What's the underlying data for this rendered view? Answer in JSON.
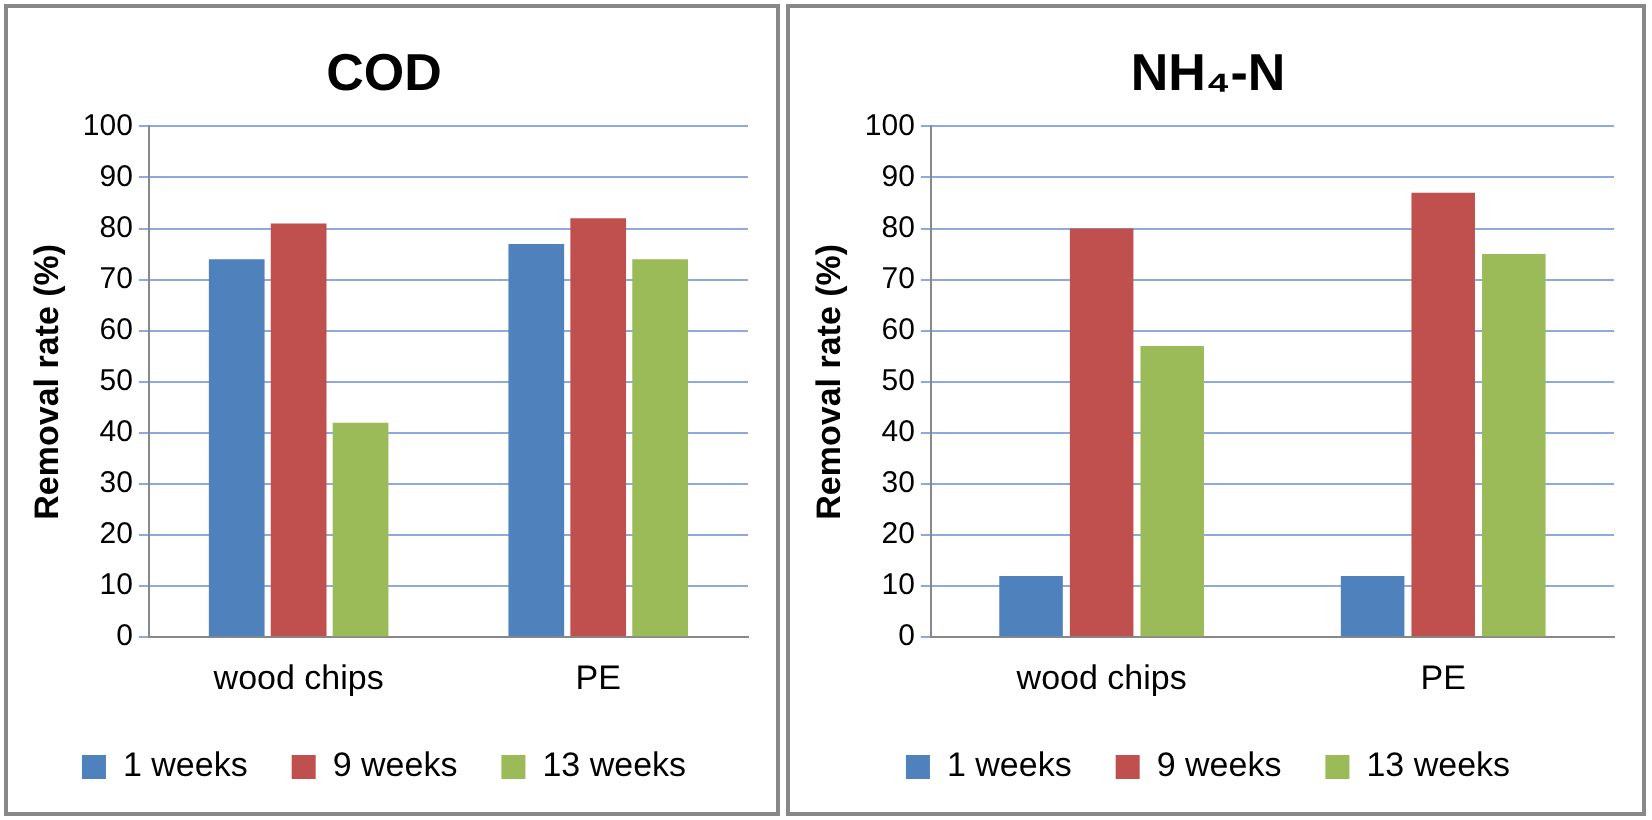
{
  "chart_data": [
    {
      "type": "bar",
      "title": "COD",
      "ylabel": "Removal rate (%)",
      "categories": [
        "wood chips",
        "PE"
      ],
      "series": [
        {
          "name": "1 weeks",
          "color": "#4f81bd",
          "values": [
            74,
            77
          ]
        },
        {
          "name": "9 weeks",
          "color": "#c0504d",
          "values": [
            81,
            82
          ]
        },
        {
          "name": "13 weeks",
          "color": "#9bbb59",
          "values": [
            42,
            74
          ]
        }
      ],
      "ylim": [
        0,
        100
      ],
      "yticks": [
        0,
        10,
        20,
        30,
        40,
        50,
        60,
        70,
        80,
        90,
        100
      ],
      "grid": "y",
      "legend": "bottom"
    },
    {
      "type": "bar",
      "title": "NH₄-N",
      "ylabel": "Removal rate (%)",
      "categories": [
        "wood chips",
        "PE"
      ],
      "series": [
        {
          "name": "1 weeks",
          "color": "#4f81bd",
          "values": [
            12,
            12
          ]
        },
        {
          "name": "9 weeks",
          "color": "#c0504d",
          "values": [
            80,
            87
          ]
        },
        {
          "name": "13 weeks",
          "color": "#9bbb59",
          "values": [
            57,
            75
          ]
        }
      ],
      "ylim": [
        0,
        100
      ],
      "yticks": [
        0,
        10,
        20,
        30,
        40,
        50,
        60,
        70,
        80,
        90,
        100
      ],
      "grid": "y",
      "legend": "bottom"
    }
  ]
}
